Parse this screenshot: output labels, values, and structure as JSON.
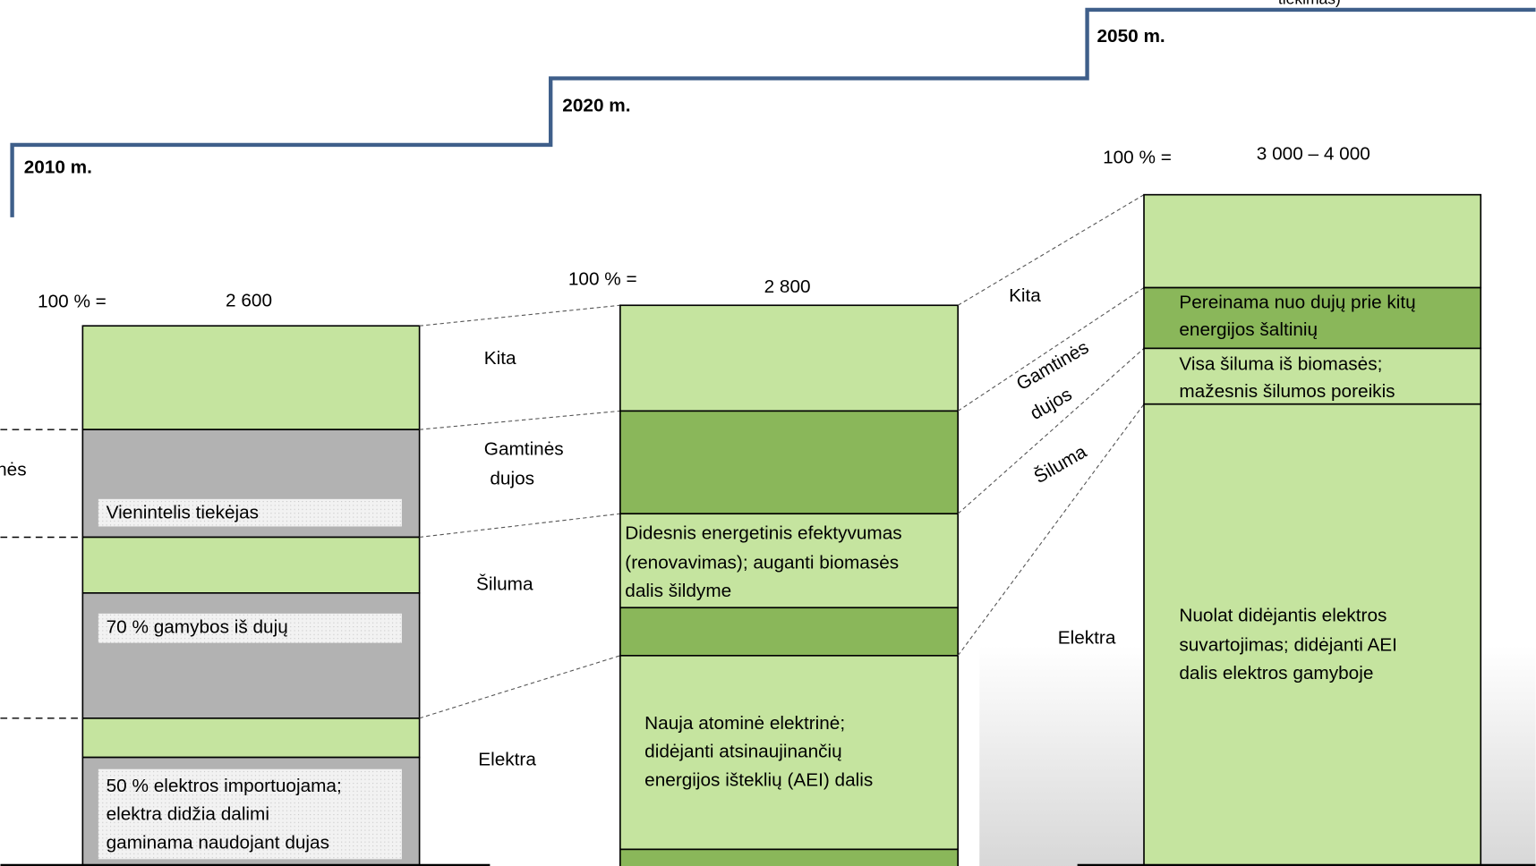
{
  "top_note": "tiekimas)",
  "left_cut": "nės",
  "steps": [
    "2010 m.",
    "2020 m.",
    "2050 m."
  ],
  "columns": [
    {
      "total_label": "100 % =",
      "total": "2 600",
      "notes": [
        [
          "Vienintelis tiekėjas"
        ],
        [
          "70 % gamybos iš dujų"
        ],
        [
          "50 % elektros importuojama;",
          "elektra didžia dalimi",
          "gaminama naudojant dujas"
        ]
      ]
    },
    {
      "total_label": "100 % =",
      "total": "2 800",
      "notes": [
        [
          "Didesnis energetinis efektyvumas",
          "(renovavimas); auganti biomasės",
          "dalis šildyme"
        ],
        [
          "Nauja atominė elektrinė;",
          "didėjanti atsinaujinančių",
          "energijos išteklių (AEI) dalis"
        ]
      ]
    },
    {
      "total_label": "100 % =",
      "total": "3 000 – 4 000",
      "notes": [
        [
          "Pereinama nuo dujų prie kitų",
          "energijos šaltinių"
        ],
        [
          "Visa šiluma iš biomasės;",
          "mažesnis šilumos poreikis"
        ],
        [
          "Nuolat didėjantis elektros",
          "suvartojimas; didėjanti AEI",
          "dalis elektros gamyboje"
        ]
      ]
    }
  ],
  "middle_labels": [
    "Kita",
    "Gamtinės",
    "dujos",
    "Šiluma",
    "Elektra"
  ],
  "right_labels": [
    "Kita",
    "Gamtinės",
    "dujos",
    "Šiluma",
    "Elektra"
  ]
}
